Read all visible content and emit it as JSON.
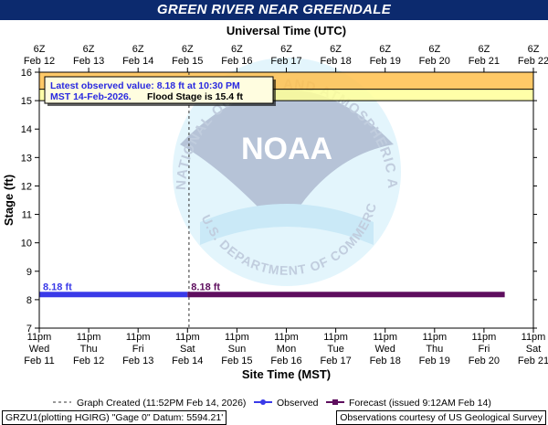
{
  "chart_data": {
    "type": "line",
    "title": "GREEN RIVER NEAR GREENDALE",
    "top_axis_title": "Universal Time (UTC)",
    "xlabel": "Site Time (MST)",
    "ylabel": "Stage (ft)",
    "ylim": [
      7,
      16
    ],
    "yticks": [
      7,
      8,
      9,
      10,
      11,
      12,
      13,
      14,
      15,
      16
    ],
    "x_range_days": [
      "Feb 11 11pm",
      "Feb 21 11pm"
    ],
    "top_ticks": [
      {
        "hour": "6Z",
        "date": "Feb 12"
      },
      {
        "hour": "6Z",
        "date": "Feb 13"
      },
      {
        "hour": "6Z",
        "date": "Feb 14"
      },
      {
        "hour": "6Z",
        "date": "Feb 15"
      },
      {
        "hour": "6Z",
        "date": "Feb 16"
      },
      {
        "hour": "6Z",
        "date": "Feb 17"
      },
      {
        "hour": "6Z",
        "date": "Feb 18"
      },
      {
        "hour": "6Z",
        "date": "Feb 19"
      },
      {
        "hour": "6Z",
        "date": "Feb 20"
      },
      {
        "hour": "6Z",
        "date": "Feb 21"
      },
      {
        "hour": "6Z",
        "date": "Feb 22"
      }
    ],
    "bottom_ticks": [
      {
        "time": "11pm",
        "day": "Wed",
        "date": "Feb 11"
      },
      {
        "time": "11pm",
        "day": "Thu",
        "date": "Feb 12"
      },
      {
        "time": "11pm",
        "day": "Fri",
        "date": "Feb 13"
      },
      {
        "time": "11pm",
        "day": "Sat",
        "date": "Feb 14"
      },
      {
        "time": "11pm",
        "day": "Sun",
        "date": "Feb 15"
      },
      {
        "time": "11pm",
        "day": "Mon",
        "date": "Feb 16"
      },
      {
        "time": "11pm",
        "day": "Tue",
        "date": "Feb 17"
      },
      {
        "time": "11pm",
        "day": "Wed",
        "date": "Feb 18"
      },
      {
        "time": "11pm",
        "day": "Thu",
        "date": "Feb 19"
      },
      {
        "time": "11pm",
        "day": "Fri",
        "date": "Feb 20"
      },
      {
        "time": "11pm",
        "day": "Sat",
        "date": "Feb 21"
      }
    ],
    "flood_stage": 15.4,
    "bands": [
      {
        "name": "flood",
        "from": 15.4,
        "to": 16,
        "color": "#ffc04c"
      },
      {
        "name": "action",
        "from": 15.0,
        "to": 15.4,
        "color": "#ffff99"
      }
    ],
    "series": [
      {
        "name": "Observed",
        "color": "#3a3ae8",
        "x_day": [
          0,
          3
        ],
        "y": [
          8.18,
          8.18
        ],
        "label": "8.18 ft"
      },
      {
        "name": "Forecast",
        "color": "#5e0e5e",
        "x_day": [
          3,
          9.42
        ],
        "y": [
          8.18,
          8.18
        ],
        "label": "8.18 ft"
      }
    ],
    "graph_created_day": 3.03,
    "annotation": {
      "line1": "Latest observed value: 8.18 ft at 10:30 PM",
      "line2_a": "MST 14-Feb-2026.",
      "line2_b": "Flood Stage is 15.4 ft"
    },
    "legend": {
      "created": "Graph Created (11:52PM Feb 14, 2026)",
      "observed": "Observed",
      "forecast": "Forecast (issued 9:12AM Feb 14)"
    },
    "watermark_text": "NATIONAL OCEANIC AND ATMOSPHERIC ADMINISTRATION",
    "watermark_bottom": "U.S. DEPARTMENT OF COMMERCE",
    "watermark_logo": "NOAA"
  },
  "footer": {
    "left": "GRZU1(plotting HGIRG) \"Gage 0\" Datum: 5594.21'",
    "right": "Observations courtesy of US Geological Survey"
  }
}
